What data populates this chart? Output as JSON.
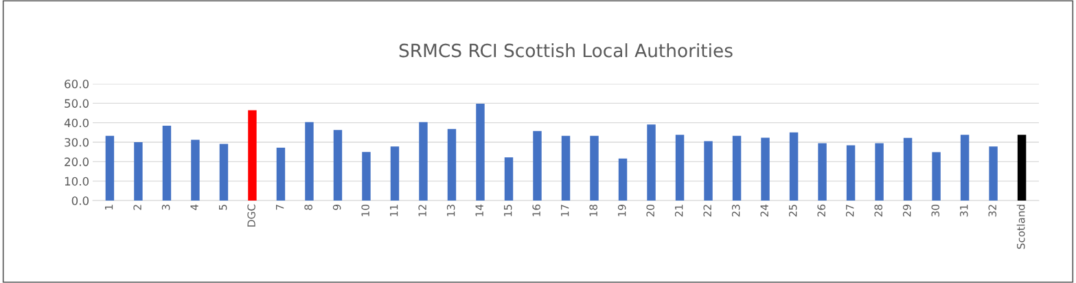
{
  "chart_data": {
    "type": "bar",
    "title": "SRMCS RCI Scottish Local Authorities",
    "categories": [
      "1",
      "2",
      "3",
      "4",
      "5",
      "DGC",
      "7",
      "8",
      "9",
      "10",
      "11",
      "12",
      "13",
      "14",
      "15",
      "16",
      "17",
      "18",
      "19",
      "20",
      "21",
      "22",
      "23",
      "24",
      "25",
      "26",
      "27",
      "28",
      "29",
      "30",
      "31",
      "32",
      "Scotland"
    ],
    "values": [
      33.3,
      30.0,
      38.5,
      31.2,
      29.1,
      46.4,
      27.2,
      40.3,
      36.3,
      25.0,
      27.8,
      40.3,
      36.8,
      49.8,
      22.2,
      35.7,
      33.3,
      33.3,
      21.6,
      39.1,
      33.8,
      30.5,
      33.3,
      32.3,
      35.0,
      29.5,
      28.4,
      29.5,
      32.2,
      24.9,
      33.8,
      27.8,
      33.8
    ],
    "colors": [
      "#4472c4",
      "#4472c4",
      "#4472c4",
      "#4472c4",
      "#4472c4",
      "#ff0000",
      "#4472c4",
      "#4472c4",
      "#4472c4",
      "#4472c4",
      "#4472c4",
      "#4472c4",
      "#4472c4",
      "#4472c4",
      "#4472c4",
      "#4472c4",
      "#4472c4",
      "#4472c4",
      "#4472c4",
      "#4472c4",
      "#4472c4",
      "#4472c4",
      "#4472c4",
      "#4472c4",
      "#4472c4",
      "#4472c4",
      "#4472c4",
      "#4472c4",
      "#4472c4",
      "#4472c4",
      "#4472c4",
      "#4472c4",
      "#000000"
    ],
    "ylim": [
      0,
      60
    ],
    "yticks": [
      {
        "value": 0,
        "label": "0.0"
      },
      {
        "value": 10,
        "label": "10.0"
      },
      {
        "value": 20,
        "label": "20.0"
      },
      {
        "value": 30,
        "label": "30.0"
      },
      {
        "value": 40,
        "label": "40.0"
      },
      {
        "value": 50,
        "label": "50.0"
      },
      {
        "value": 60,
        "label": "60.0"
      }
    ],
    "grid": "y"
  }
}
